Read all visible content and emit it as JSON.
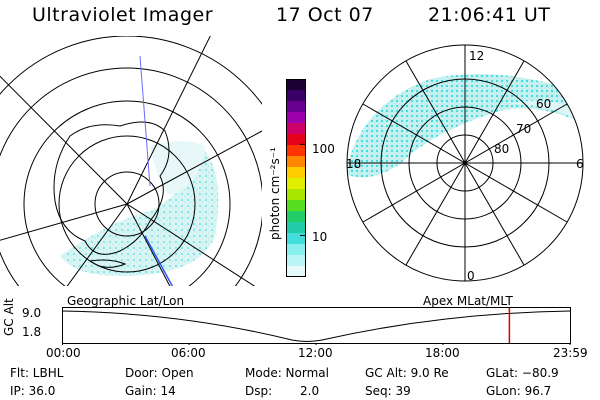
{
  "header": {
    "instrument": "Ultraviolet Imager",
    "date": "17 Oct 07",
    "time": "21:06:41 UT"
  },
  "colorbar": {
    "label": "photon cm⁻²s⁻¹",
    "ticks": [
      "100",
      "10"
    ],
    "colors": [
      "#1a0033",
      "#3b0066",
      "#6a0090",
      "#9b00aa",
      "#cc0066",
      "#e6001a",
      "#ff3300",
      "#ff8800",
      "#ffcc00",
      "#e0ee00",
      "#a8e600",
      "#55dd22",
      "#22cc66",
      "#22ccaa",
      "#44dddd",
      "#88eeee",
      "#bbf4f4",
      "#e6fafa"
    ]
  },
  "left_panel": {
    "caption": "Geographic Lat/Lon"
  },
  "right_panel": {
    "caption": "Apex MLat/MLT",
    "mlt_labels": {
      "top": "12",
      "left": "18",
      "right": "6",
      "bottom": "0"
    },
    "lat_labels": [
      "60",
      "70",
      "80"
    ]
  },
  "timeline": {
    "ylabel": "GC Alt",
    "yticks": [
      "9.0",
      "1.8"
    ],
    "xticks": [
      "00:00",
      "06:00",
      "12:00",
      "18:00",
      "23:59"
    ],
    "marker_color": "#dd0000",
    "marker_fraction": 0.8797
  },
  "info": {
    "flt": "Flt: LBHL",
    "door": "Door: Open",
    "mode": "Mode: Normal",
    "gc_alt": "GC Alt: 9.0 Re",
    "glat": "GLat: −80.9",
    "ip": "IP: 36.0",
    "gain": "Gain: 14",
    "dsp_label": "Dsp:",
    "dsp_value": "2.0",
    "seq": "Seq: 39",
    "glon": "GLon:  96.7"
  }
}
